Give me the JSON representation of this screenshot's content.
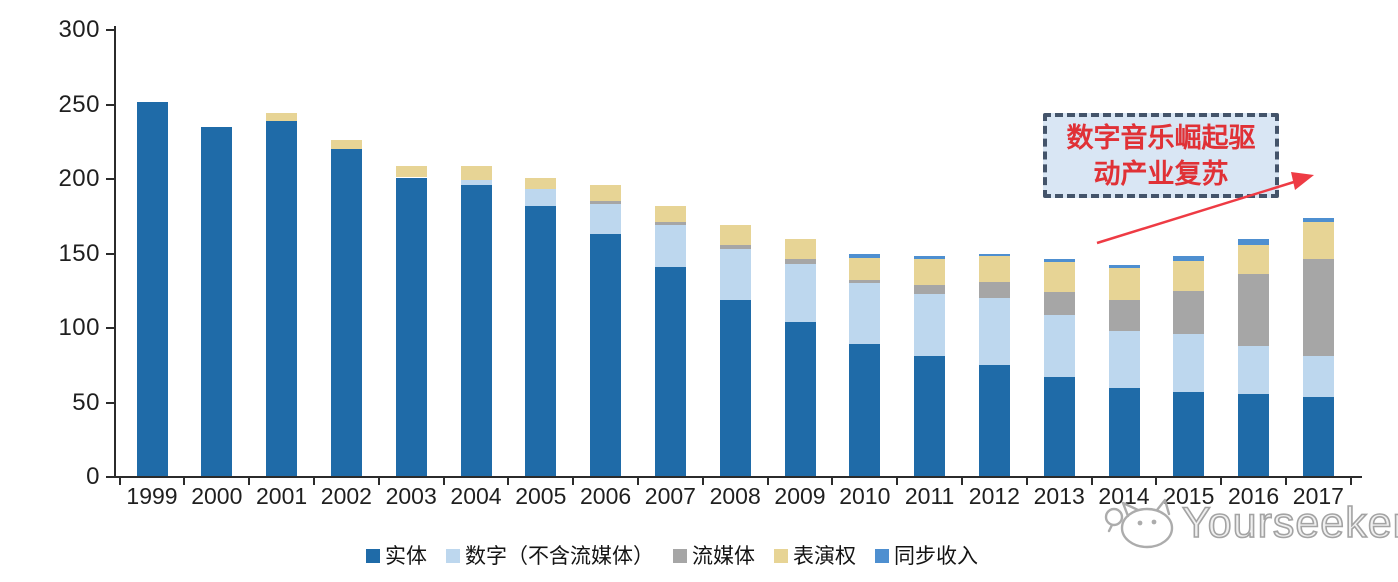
{
  "chart_data": {
    "type": "bar",
    "stacked": true,
    "title": "",
    "xlabel": "",
    "ylabel": "",
    "ylim": [
      0,
      300
    ],
    "y_ticks": [
      0,
      50,
      100,
      150,
      200,
      250,
      300
    ],
    "grid": false,
    "legend_position": "bottom",
    "categories": [
      "1999",
      "2000",
      "2001",
      "2002",
      "2003",
      "2004",
      "2005",
      "2006",
      "2007",
      "2008",
      "2009",
      "2010",
      "2011",
      "2012",
      "2013",
      "2014",
      "2015",
      "2016",
      "2017"
    ],
    "series": [
      {
        "key": "physical",
        "name": "实体",
        "color": "#1f6ba8",
        "values": [
          252,
          235,
          239,
          220,
          201,
          196,
          182,
          163,
          141,
          119,
          104,
          89,
          81,
          75,
          67,
          60,
          57,
          56,
          54
        ]
      },
      {
        "key": "digital",
        "name": "数字（不含流媒体）",
        "color": "#bdd7ee",
        "values": [
          0,
          0,
          0,
          0,
          0,
          3,
          11,
          20,
          28,
          34,
          39,
          41,
          42,
          45,
          42,
          38,
          39,
          32,
          27
        ]
      },
      {
        "key": "streaming",
        "name": "流媒体",
        "color": "#a6a6a6",
        "values": [
          0,
          0,
          0,
          0,
          0,
          0,
          0,
          2,
          2,
          3,
          3,
          2,
          6,
          11,
          15,
          21,
          29,
          48,
          65
        ]
      },
      {
        "key": "performance",
        "name": "表演权",
        "color": "#e7d495",
        "values": [
          0,
          0,
          5,
          6,
          8,
          10,
          8,
          11,
          11,
          13,
          14,
          15,
          17,
          17,
          20,
          21,
          20,
          20,
          25
        ]
      },
      {
        "key": "sync",
        "name": "同步收入",
        "color": "#4e8fd0",
        "values": [
          0,
          0,
          0,
          0,
          0,
          0,
          0,
          0,
          0,
          0,
          0,
          3,
          2,
          2,
          2,
          2,
          3,
          4,
          3
        ]
      }
    ]
  },
  "annotation": {
    "line1": "数字音乐崛起驱",
    "line2": "动产业复苏",
    "text_color": "#e03136",
    "border_color": "#44546a",
    "fill_color": "#d9e6f4",
    "arrow_color": "#ee3b44"
  },
  "watermark": {
    "text": "Yourseeker",
    "logo": "cat-logo",
    "color": "#a3a3a3"
  },
  "axis_color": "#2b2b2b"
}
